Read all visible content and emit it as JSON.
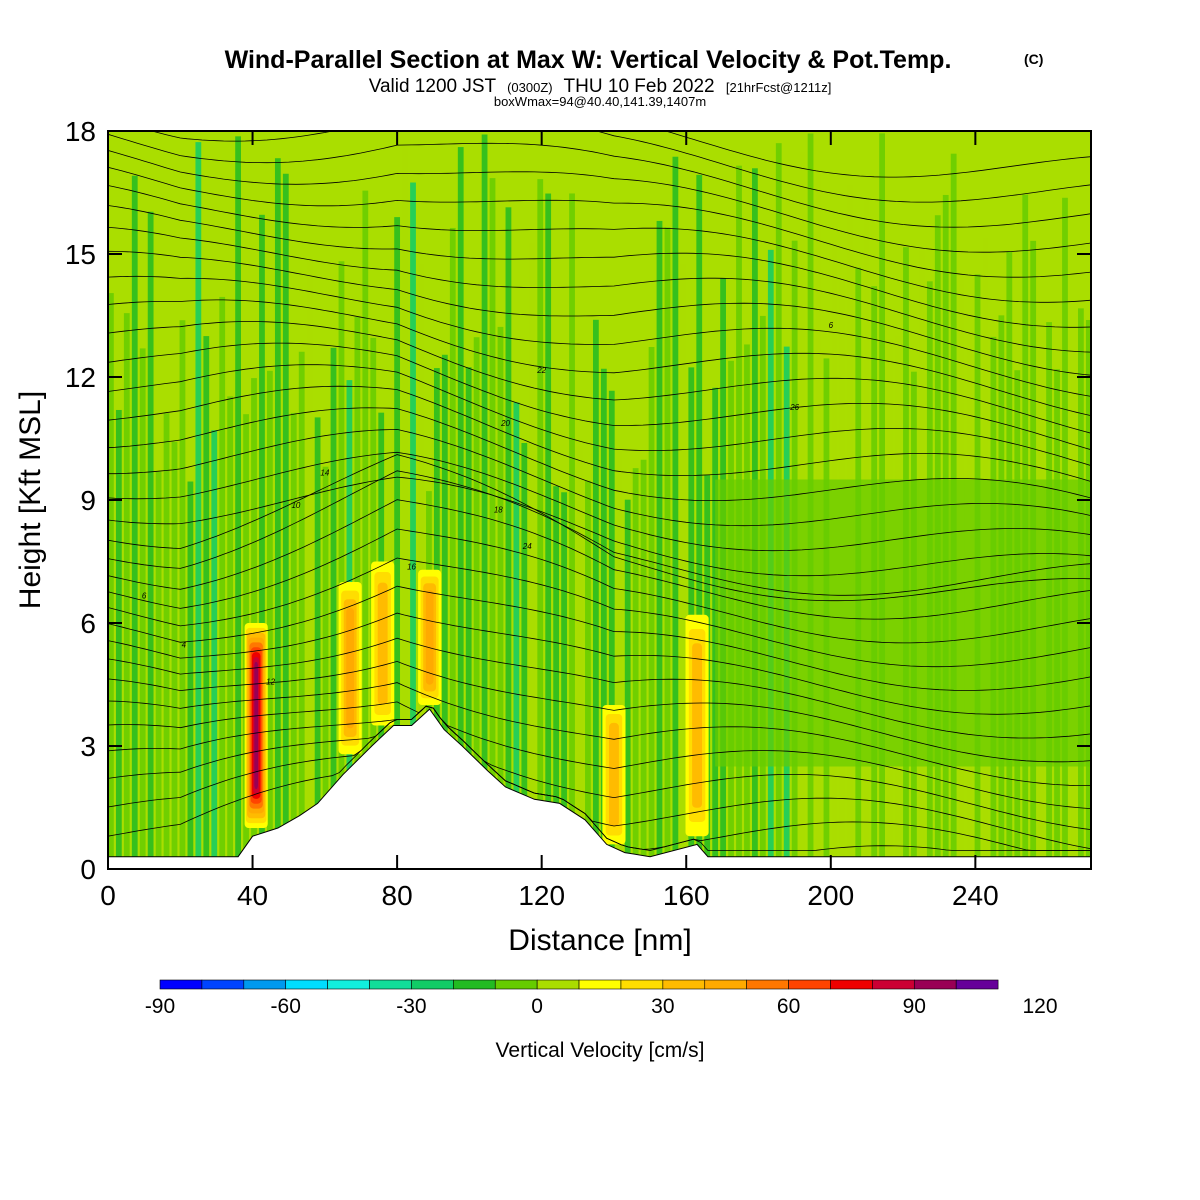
{
  "chart_data": {
    "type": "heatmap",
    "title": "Wind-Parallel Section at Max W: Vertical Velocity & Pot.Temp.",
    "title_mark": "(C)",
    "subtitle_main": "Valid 1200 JST",
    "subtitle_utc": "(0300Z)",
    "subtitle_date": "THU 10 Feb 2022",
    "subtitle_fcst": "[21hrFcst@1211z]",
    "subtitle2": "boxWmax=94@40.40,141.39,1407m",
    "xlabel": "Distance [nm]",
    "ylabel": "Height [Kft MSL]",
    "xlim": [
      0,
      272
    ],
    "ylim": [
      0,
      18
    ],
    "xticks": [
      "0",
      "40",
      "80",
      "120",
      "160",
      "200",
      "240"
    ],
    "xtick_values": [
      0,
      40,
      80,
      120,
      160,
      200,
      240
    ],
    "yticks": [
      "0",
      "3",
      "6",
      "9",
      "12",
      "15",
      "18"
    ],
    "ytick_values": [
      0,
      3,
      6,
      9,
      12,
      15,
      18
    ],
    "colorbar": {
      "label": "Vertical Velocity [cm/s]",
      "min": -90,
      "max": 120,
      "step": 10,
      "tick_labels": [
        "-90",
        "-60",
        "-30",
        "0",
        "30",
        "60",
        "90",
        "120"
      ],
      "tick_values": [
        -90,
        -60,
        -30,
        0,
        30,
        60,
        90,
        120
      ],
      "colors": [
        "#0000ff",
        "#0044ff",
        "#0099ee",
        "#00ddff",
        "#11eedd",
        "#11dd99",
        "#11cc66",
        "#22bb22",
        "#66cc00",
        "#aadd00",
        "#ffff00",
        "#ffdd00",
        "#ffbb00",
        "#ffaa00",
        "#ff7700",
        "#ff4400",
        "#ee0000",
        "#cc0033",
        "#990055",
        "#660099"
      ]
    },
    "terrain_kft": [
      [
        0,
        0.3
      ],
      [
        36,
        0.3
      ],
      [
        40,
        0.8
      ],
      [
        47,
        1.0
      ],
      [
        53,
        1.3
      ],
      [
        58,
        1.6
      ],
      [
        65,
        2.3
      ],
      [
        73,
        3.0
      ],
      [
        79,
        3.5
      ],
      [
        84,
        3.5
      ],
      [
        89,
        3.9
      ],
      [
        93,
        3.4
      ],
      [
        98,
        3.0
      ],
      [
        105,
        2.4
      ],
      [
        110,
        2.0
      ],
      [
        118,
        1.7
      ],
      [
        125,
        1.6
      ],
      [
        132,
        1.2
      ],
      [
        138,
        0.6
      ],
      [
        143,
        0.4
      ],
      [
        150,
        0.3
      ],
      [
        163,
        0.6
      ],
      [
        166,
        0.3
      ],
      [
        272,
        0.3
      ]
    ],
    "updrafts": [
      {
        "x": 41,
        "h_low": 1.0,
        "h_high": 6.0,
        "peak": 94
      },
      {
        "x": 67,
        "h_low": 2.8,
        "h_high": 7.0,
        "peak": 45
      },
      {
        "x": 76,
        "h_low": 3.5,
        "h_high": 7.5,
        "peak": 38
      },
      {
        "x": 89,
        "h_low": 4.0,
        "h_high": 7.3,
        "peak": 48
      },
      {
        "x": 140,
        "h_low": 0.6,
        "h_high": 4.0,
        "peak": 35
      },
      {
        "x": 163,
        "h_low": 0.8,
        "h_high": 6.2,
        "peak": 35
      }
    ],
    "theta_label_values": [
      "6",
      "4",
      "12",
      "10",
      "14",
      "16",
      "18",
      "20",
      "22",
      "24",
      "26"
    ]
  }
}
